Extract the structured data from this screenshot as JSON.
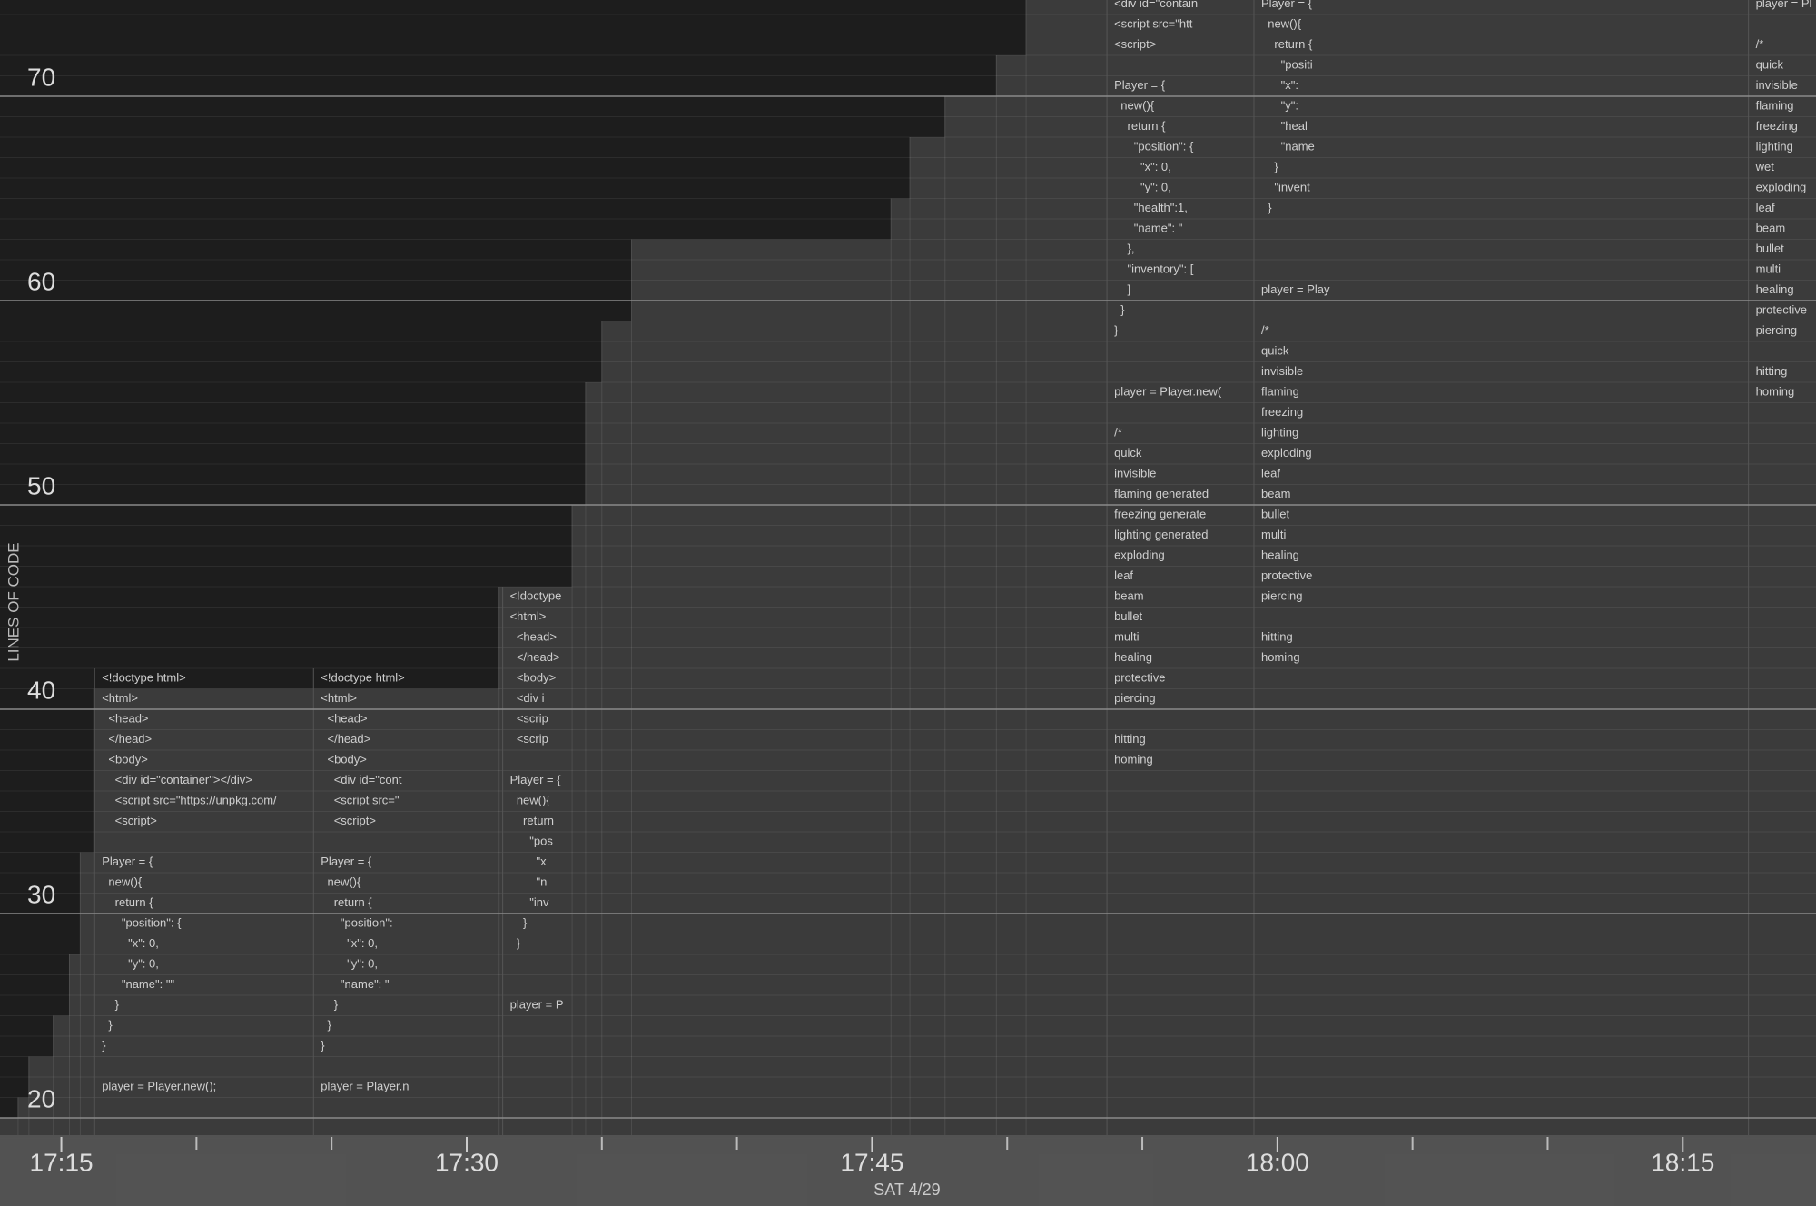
{
  "chart_data": {
    "type": "code-timeline",
    "ylabel": "LINES OF CODE",
    "xlabel": "SAT 4/29",
    "xlim": [
      1032.73,
      1099.93
    ],
    "ylim": [
      19,
      75
    ],
    "yticks": [
      20,
      30,
      40,
      50,
      60,
      70
    ],
    "xticks": [
      {
        "value": 1035,
        "label": "17:15"
      },
      {
        "value": 1050,
        "label": "17:30"
      },
      {
        "value": 1065,
        "label": "17:45"
      },
      {
        "value": 1080,
        "label": "18:00"
      },
      {
        "value": 1095,
        "label": "18:15"
      }
    ],
    "xminorticks": [
      1040,
      1045,
      1055,
      1060,
      1070,
      1075,
      1085,
      1090
    ],
    "grid": true,
    "series": [
      {
        "name": "lines",
        "color": "#1d1d1d",
        "x": [
          1032.7,
          1033.4,
          1033.8,
          1034.7,
          1035.3,
          1035.7,
          1036.2,
          1051.2,
          1053.9,
          1054.4,
          1055.0,
          1056.1,
          1065.7,
          1066.4,
          1067.7,
          1069.6,
          1070.7
        ],
        "values": [
          20,
          21,
          23,
          25,
          28,
          33,
          41,
          46,
          50,
          56,
          59,
          63,
          65,
          68,
          70,
          72,
          75
        ]
      }
    ],
    "snapshots": [
      {
        "x": 1036.5,
        "top": 42,
        "lines": [
          "<!doctype html>",
          "<html>",
          "  <head>",
          "  </head>",
          "  <body>",
          "    <div id=\"container\"></div>",
          "    <script src=\"https://unpkg.com/",
          "    <script>",
          "",
          "Player = {",
          "  new(){",
          "    return {",
          "      \"position\": {",
          "        \"x\": 0,",
          "        \"y\": 0,",
          "      \"name\": \"\"",
          "    }",
          "  }",
          "}",
          "",
          "player = Player.new();"
        ]
      },
      {
        "x": 1044.6,
        "top": 42,
        "lines": [
          "<!doctype html>",
          "<html>",
          "  <head>",
          "  </head>",
          "  <body>",
          "    <div id=\"cont",
          "    <script src=\"",
          "    <script>",
          "",
          "Player = {",
          "  new(){",
          "    return {",
          "      \"position\":",
          "        \"x\": 0,",
          "        \"y\": 0,",
          "      \"name\": \"",
          "    }",
          "  }",
          "}",
          "",
          "player = Player.n"
        ]
      },
      {
        "x": 1051.6,
        "top": 46,
        "lines": [
          "<!doctype",
          "<html>",
          "  <head>",
          "  </head>",
          "  <body>",
          "  <div i",
          "  <scrip",
          "  <scrip",
          "",
          "Player = {",
          "  new(){",
          "    return",
          "      \"pos",
          "        \"x",
          "        \"n",
          "      \"inv",
          "    }",
          "  }",
          "",
          "",
          "player = P"
        ]
      },
      {
        "x": 1073.96,
        "top": 75,
        "lines": [
          "<div id=\"contain",
          "<script src=\"htt",
          "<script>",
          "",
          "Player = {",
          "  new(){",
          "    return {",
          "      \"position\": {",
          "        \"x\": 0,",
          "        \"y\": 0,",
          "      \"health\":1,",
          "      \"name\": \"",
          "    },",
          "    \"inventory\": [",
          "    ]",
          "  }",
          "}",
          "",
          "",
          "player = Player.new(",
          "",
          "/*",
          "quick",
          "invisible",
          "flaming generated",
          "freezing generate",
          "lighting generated",
          "exploding",
          "leaf",
          "beam",
          "bullet",
          "multi",
          "healing",
          "protective",
          "piercing",
          "",
          "hitting",
          "homing"
        ]
      },
      {
        "x": 1079.4,
        "top": 75,
        "lines": [
          "Player = {",
          "  new(){",
          "    return {",
          "      \"positi",
          "      \"x\":",
          "      \"y\":",
          "      \"heal",
          "      \"name",
          "    }",
          "    \"invent",
          "  }",
          "",
          "",
          "",
          "player = Play",
          "",
          "/*",
          "quick",
          "invisible",
          "flaming",
          "freezing",
          "lighting",
          "exploding",
          "leaf",
          "beam",
          "bullet",
          "multi",
          "healing",
          "protective",
          "piercing",
          "",
          "hitting",
          "homing"
        ]
      },
      {
        "x": 1097.7,
        "top": 75,
        "lines": [
          "player = Playe",
          "",
          "/*",
          "quick",
          "invisible",
          "flaming",
          "freezing",
          "lighting",
          "wet",
          "exploding",
          "leaf",
          "beam",
          "bullet",
          "multi",
          "healing",
          "protective",
          "piercing",
          "",
          "hitting",
          "homing"
        ]
      }
    ]
  }
}
